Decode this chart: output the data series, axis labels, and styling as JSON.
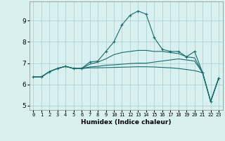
{
  "xlabel": "Humidex (Indice chaleur)",
  "ylabel": "",
  "xlim": [
    -0.5,
    23.5
  ],
  "ylim": [
    4.8,
    9.9
  ],
  "yticks": [
    5,
    6,
    7,
    8,
    9
  ],
  "xticks": [
    0,
    1,
    2,
    3,
    4,
    5,
    6,
    7,
    8,
    9,
    10,
    11,
    12,
    13,
    14,
    15,
    16,
    17,
    18,
    19,
    20,
    21,
    22,
    23
  ],
  "bg_color": "#d8f0f0",
  "grid_color": "#aacccc",
  "line_color": "#1a6b6b",
  "lines": [
    {
      "x": [
        0,
        1,
        2,
        3,
        4,
        5,
        6,
        7,
        8,
        9,
        10,
        11,
        12,
        13,
        14,
        15,
        16,
        17,
        18,
        19,
        20,
        21,
        22,
        23
      ],
      "y": [
        6.35,
        6.35,
        6.6,
        6.75,
        6.85,
        6.75,
        6.75,
        7.05,
        7.1,
        7.55,
        8.0,
        8.8,
        9.25,
        9.45,
        9.3,
        8.2,
        7.65,
        7.55,
        7.55,
        7.3,
        7.55,
        6.55,
        5.2,
        6.3
      ],
      "marker": "+"
    },
    {
      "x": [
        0,
        1,
        2,
        3,
        4,
        5,
        6,
        7,
        8,
        9,
        10,
        11,
        12,
        13,
        14,
        15,
        16,
        17,
        18,
        19,
        20,
        21,
        22,
        23
      ],
      "y": [
        6.35,
        6.35,
        6.6,
        6.75,
        6.85,
        6.75,
        6.75,
        6.95,
        7.05,
        7.2,
        7.4,
        7.5,
        7.55,
        7.6,
        7.6,
        7.55,
        7.55,
        7.5,
        7.45,
        7.3,
        7.25,
        6.55,
        5.2,
        6.3
      ],
      "marker": null
    },
    {
      "x": [
        0,
        1,
        2,
        3,
        4,
        5,
        6,
        7,
        8,
        9,
        10,
        11,
        12,
        13,
        14,
        15,
        16,
        17,
        18,
        19,
        20,
        21,
        22,
        23
      ],
      "y": [
        6.35,
        6.35,
        6.6,
        6.75,
        6.85,
        6.75,
        6.75,
        6.82,
        6.85,
        6.9,
        6.92,
        6.95,
        6.98,
        7.0,
        7.0,
        7.05,
        7.1,
        7.15,
        7.2,
        7.15,
        7.1,
        6.55,
        5.2,
        6.3
      ],
      "marker": null
    },
    {
      "x": [
        0,
        1,
        2,
        3,
        4,
        5,
        6,
        7,
        8,
        9,
        10,
        11,
        12,
        13,
        14,
        15,
        16,
        17,
        18,
        19,
        20,
        21,
        22,
        23
      ],
      "y": [
        6.35,
        6.35,
        6.6,
        6.75,
        6.85,
        6.75,
        6.75,
        6.78,
        6.78,
        6.79,
        6.8,
        6.81,
        6.82,
        6.83,
        6.83,
        6.82,
        6.8,
        6.78,
        6.75,
        6.7,
        6.65,
        6.55,
        5.2,
        6.3
      ],
      "marker": null
    }
  ]
}
